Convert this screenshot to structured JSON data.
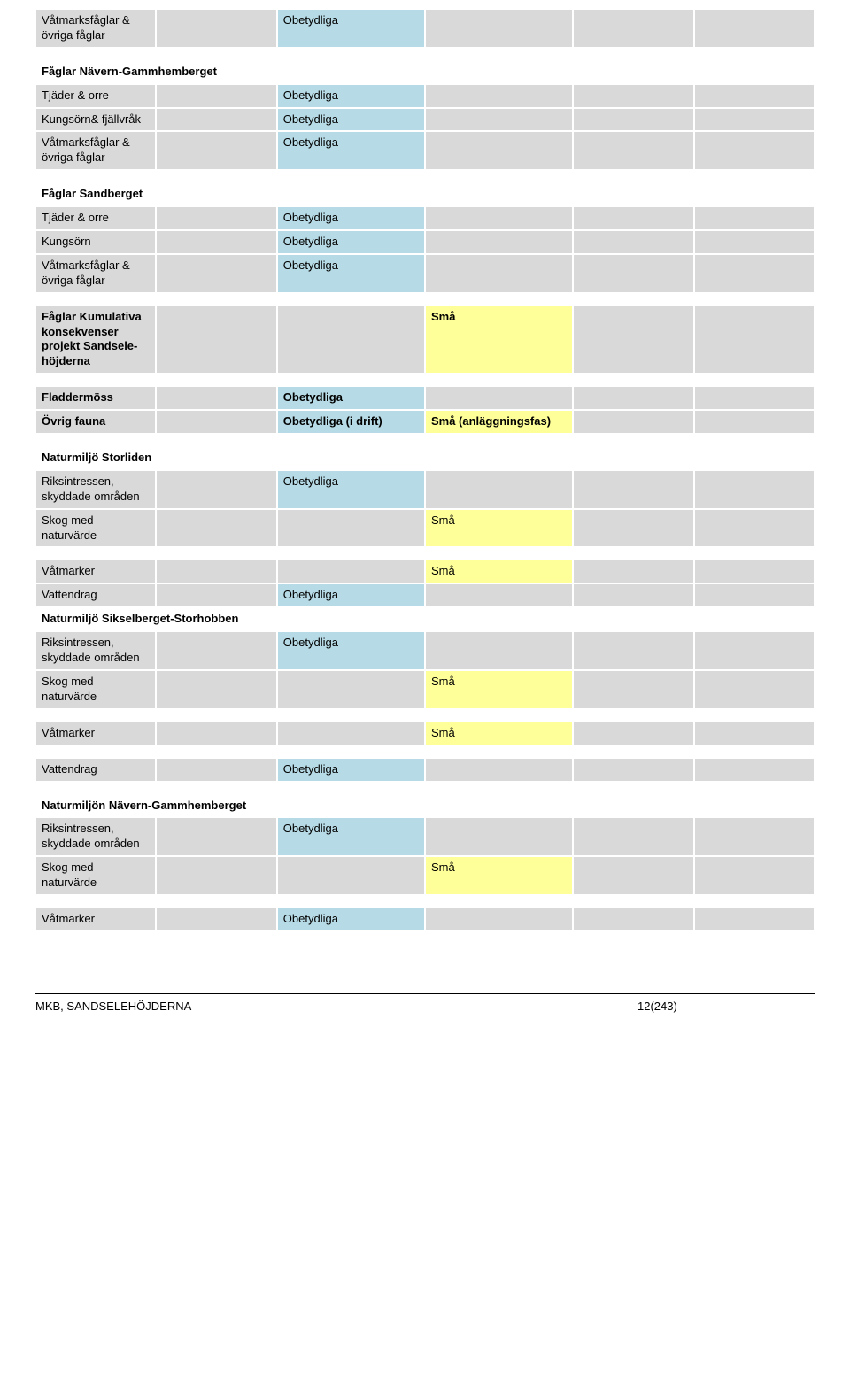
{
  "labels": {
    "obetydliga": "Obetydliga",
    "obetydliga_idrift": "Obetydliga (i drift)",
    "sma": "Små",
    "sma_anlag": "Små (anläggningsfas)"
  },
  "colors": {
    "gray": "#d9d9d9",
    "blue": "#b7dbe6",
    "yellow": "#ffff99",
    "white": "#ffffff",
    "border": "#ffffff",
    "hr": "#000000"
  },
  "column_widths_pct": [
    15.5,
    15.5,
    19,
    19,
    15.5,
    15.5
  ],
  "sections": [
    {
      "rows": [
        {
          "label": "Våtmarksfåglar & övriga fåglar",
          "col3": "obetydliga",
          "col3_color": "blue"
        }
      ]
    },
    {
      "header": "Fåglar Nävern-Gammhemberget",
      "rows": [
        {
          "label": "Tjäder & orre",
          "col3": "obetydliga",
          "col3_color": "blue"
        },
        {
          "label": "Kungsörn& fjällvråk",
          "col3": "obetydliga",
          "col3_color": "blue"
        },
        {
          "label": "Våtmarksfåglar & övriga fåglar",
          "col3": "obetydliga",
          "col3_color": "blue"
        }
      ]
    },
    {
      "header": "Fåglar Sandberget",
      "rows": [
        {
          "label": "Tjäder & orre",
          "col3": "obetydliga",
          "col3_color": "blue"
        },
        {
          "label": "Kungsörn",
          "col3": "obetydliga",
          "col3_color": "blue"
        },
        {
          "label": "Våtmarksfåglar & övriga fåglar",
          "col3": "obetydliga",
          "col3_color": "blue"
        }
      ]
    },
    {
      "bold_rows": [
        {
          "label": "Fåglar Kumulativa konsekvenser projekt Sandsele-höjderna",
          "col4": "sma",
          "col4_color": "yellow"
        }
      ]
    },
    {
      "bold_rows": [
        {
          "label": "Fladdermöss",
          "col3": "obetydliga",
          "col3_color": "blue"
        },
        {
          "label": "Övrig fauna",
          "col3": "obetydliga_idrift",
          "col3_color": "blue",
          "col4": "sma_anlag",
          "col4_color": "yellow"
        }
      ]
    },
    {
      "header": "Naturmiljö Storliden",
      "rows": [
        {
          "label": "Riksintressen, skyddade områden",
          "col3": "obetydliga",
          "col3_color": "blue"
        },
        {
          "label": "Skog med naturvärde",
          "col4": "sma",
          "col4_color": "yellow"
        }
      ]
    },
    {
      "rows": [
        {
          "label": "Våtmarker",
          "col4": "sma",
          "col4_color": "yellow"
        },
        {
          "label": "Vattendrag",
          "col3": "obetydliga",
          "col3_color": "blue"
        }
      ]
    },
    {
      "header": "Naturmiljö Sikselberget-Storhobben",
      "rows": [
        {
          "label": "Riksintressen, skyddade områden",
          "col3": "obetydliga",
          "col3_color": "blue"
        },
        {
          "label": "Skog med naturvärde",
          "col4": "sma",
          "col4_color": "yellow"
        }
      ]
    },
    {
      "rows": [
        {
          "label": "Våtmarker",
          "col4": "sma",
          "col4_color": "yellow"
        }
      ]
    },
    {
      "rows": [
        {
          "label": "Vattendrag",
          "col3": "obetydliga",
          "col3_color": "blue"
        }
      ]
    },
    {
      "header": "Naturmiljön Nävern-Gammhemberget",
      "rows": [
        {
          "label": "Riksintressen, skyddade områden",
          "col3": "obetydliga",
          "col3_color": "blue"
        },
        {
          "label": "Skog med naturvärde",
          "col4": "sma",
          "col4_color": "yellow"
        }
      ]
    },
    {
      "rows": [
        {
          "label": "Våtmarker",
          "col3": "obetydliga",
          "col3_color": "blue"
        }
      ]
    }
  ],
  "footer": {
    "left": "MKB, SANDSELEHÖJDERNA",
    "right": "12(243)"
  }
}
